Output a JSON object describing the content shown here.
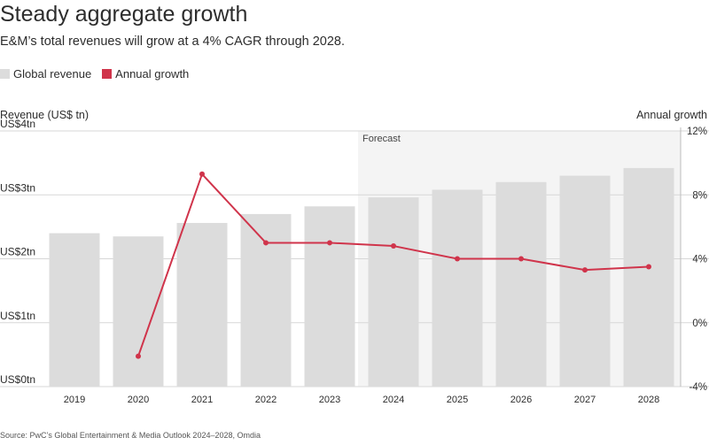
{
  "header": {
    "title": "Steady aggregate growth",
    "subtitle": "E&M’s total revenues will grow at a 4% CAGR through 2028."
  },
  "legend": {
    "items": [
      {
        "label": "Global revenue",
        "color": "#dcdcdc"
      },
      {
        "label": "Annual growth",
        "color": "#d0344b"
      }
    ]
  },
  "axes": {
    "left_title": "Revenue (US$ tn)",
    "right_title": "Annual growth"
  },
  "forecast_label": "Forecast",
  "footer": {
    "source": "Source: PwC’s Global Entertainment & Media Outlook 2024–2028, Omdia"
  },
  "chart_data": {
    "type": "bar",
    "categories": [
      "2019",
      "2020",
      "2021",
      "2022",
      "2023",
      "2024",
      "2025",
      "2026",
      "2027",
      "2028"
    ],
    "series": [
      {
        "name": "Global revenue",
        "type": "bar",
        "axis": "left",
        "values": [
          2.4,
          2.35,
          2.56,
          2.7,
          2.82,
          2.96,
          3.08,
          3.2,
          3.3,
          3.42
        ]
      },
      {
        "name": "Annual growth",
        "type": "line",
        "axis": "right",
        "values": [
          null,
          -2.1,
          9.3,
          5.0,
          5.0,
          4.8,
          4.0,
          4.0,
          3.3,
          3.5
        ]
      }
    ],
    "y_left": {
      "ylim": [
        0,
        4
      ],
      "ticks": [
        0,
        1,
        2,
        3,
        4
      ],
      "tick_labels": [
        "US$0tn",
        "US$1tn",
        "US$2tn",
        "US$3tn",
        "US$4tn"
      ]
    },
    "y_right": {
      "ylim": [
        -4,
        12
      ],
      "ticks": [
        -4,
        0,
        4,
        8,
        12
      ],
      "tick_labels": [
        "-4%",
        "0%",
        "4%",
        "8%",
        "12%"
      ]
    },
    "forecast_start": "2024",
    "grid": true,
    "legend_position": "top-left",
    "colors": {
      "bar": "#dcdcdc",
      "line": "#d0344b",
      "forecast_band": "#f4f4f4",
      "grid": "#d7d7d7"
    }
  }
}
